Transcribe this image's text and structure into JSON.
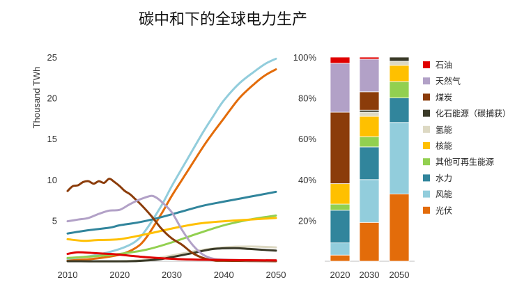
{
  "title": "碳中和下的全球电力生产",
  "chart_data": [
    {
      "type": "line",
      "ylabel": "Thousand TWh",
      "xlim": [
        2010,
        2050
      ],
      "ylim": [
        0,
        25
      ],
      "x_ticks": [
        "2010",
        "2020",
        "2030",
        "2040",
        "2050"
      ],
      "y_ticks": [
        "5",
        "10",
        "15",
        "20",
        "25"
      ],
      "series": [
        {
          "name": "光伏",
          "color": "#e36c0a",
          "points": [
            [
              2010,
              0.1
            ],
            [
              2015,
              0.3
            ],
            [
              2020,
              0.8
            ],
            [
              2023,
              1.6
            ],
            [
              2025,
              2.8
            ],
            [
              2028,
              5.8
            ],
            [
              2030,
              8.0
            ],
            [
              2033,
              11.0
            ],
            [
              2036,
              14.0
            ],
            [
              2038,
              15.8
            ],
            [
              2040,
              17.5
            ],
            [
              2043,
              20.0
            ],
            [
              2046,
              21.8
            ],
            [
              2048,
              22.8
            ],
            [
              2050,
              23.5
            ]
          ]
        },
        {
          "name": "风能",
          "color": "#92cddc",
          "points": [
            [
              2010,
              0.3
            ],
            [
              2015,
              0.7
            ],
            [
              2020,
              1.5
            ],
            [
              2023,
              2.4
            ],
            [
              2025,
              3.8
            ],
            [
              2028,
              6.8
            ],
            [
              2030,
              9.2
            ],
            [
              2033,
              12.5
            ],
            [
              2036,
              15.8
            ],
            [
              2038,
              17.8
            ],
            [
              2040,
              19.7
            ],
            [
              2043,
              21.8
            ],
            [
              2046,
              23.3
            ],
            [
              2048,
              24.2
            ],
            [
              2050,
              24.8
            ]
          ]
        },
        {
          "name": "水力",
          "color": "#31859c",
          "points": [
            [
              2010,
              3.4
            ],
            [
              2014,
              3.8
            ],
            [
              2018,
              4.1
            ],
            [
              2020,
              4.4
            ],
            [
              2024,
              4.8
            ],
            [
              2028,
              5.4
            ],
            [
              2032,
              6.1
            ],
            [
              2036,
              6.8
            ],
            [
              2040,
              7.3
            ],
            [
              2045,
              7.9
            ],
            [
              2050,
              8.5
            ]
          ]
        },
        {
          "name": "其他可再生能源",
          "color": "#92d050",
          "points": [
            [
              2010,
              0.4
            ],
            [
              2015,
              0.6
            ],
            [
              2020,
              0.9
            ],
            [
              2025,
              1.4
            ],
            [
              2030,
              2.3
            ],
            [
              2035,
              3.4
            ],
            [
              2040,
              4.4
            ],
            [
              2045,
              5.1
            ],
            [
              2050,
              5.6
            ]
          ]
        },
        {
          "name": "核能",
          "color": "#ffc000",
          "points": [
            [
              2010,
              2.7
            ],
            [
              2013,
              2.5
            ],
            [
              2016,
              2.6
            ],
            [
              2020,
              2.7
            ],
            [
              2025,
              3.3
            ],
            [
              2030,
              4.0
            ],
            [
              2035,
              4.6
            ],
            [
              2040,
              4.9
            ],
            [
              2045,
              5.1
            ],
            [
              2050,
              5.3
            ]
          ]
        },
        {
          "name": "氢能",
          "color": "#ddd9c3",
          "points": [
            [
              2010,
              0
            ],
            [
              2020,
              0
            ],
            [
              2025,
              0.2
            ],
            [
              2030,
              0.7
            ],
            [
              2035,
              1.3
            ],
            [
              2040,
              1.7
            ],
            [
              2045,
              1.8
            ],
            [
              2050,
              1.7
            ]
          ]
        },
        {
          "name": "化石能源（碳捕获）",
          "color": "#3a3a28",
          "points": [
            [
              2010,
              0
            ],
            [
              2022,
              0
            ],
            [
              2027,
              0.2
            ],
            [
              2030,
              0.5
            ],
            [
              2034,
              1.0
            ],
            [
              2038,
              1.5
            ],
            [
              2042,
              1.6
            ],
            [
              2045,
              1.5
            ],
            [
              2050,
              1.3
            ]
          ]
        },
        {
          "name": "煤炭",
          "color": "#8b3c0a",
          "points": [
            [
              2010,
              8.6
            ],
            [
              2011,
              9.2
            ],
            [
              2012,
              9.3
            ],
            [
              2013,
              9.7
            ],
            [
              2014,
              9.8
            ],
            [
              2015,
              9.5
            ],
            [
              2016,
              9.8
            ],
            [
              2017,
              9.6
            ],
            [
              2018,
              10.1
            ],
            [
              2019,
              9.7
            ],
            [
              2020,
              9.2
            ],
            [
              2021,
              8.6
            ],
            [
              2022,
              8.2
            ],
            [
              2023,
              7.6
            ],
            [
              2024,
              7.0
            ],
            [
              2026,
              5.6
            ],
            [
              2028,
              4.0
            ],
            [
              2030,
              2.8
            ],
            [
              2032,
              2.0
            ],
            [
              2034,
              1.0
            ],
            [
              2036,
              0.4
            ],
            [
              2038,
              0.1
            ],
            [
              2040,
              0.05
            ],
            [
              2050,
              0
            ]
          ]
        },
        {
          "name": "天然气",
          "color": "#b2a1c7",
          "points": [
            [
              2010,
              4.9
            ],
            [
              2012,
              5.1
            ],
            [
              2014,
              5.3
            ],
            [
              2016,
              5.8
            ],
            [
              2018,
              6.2
            ],
            [
              2020,
              6.3
            ],
            [
              2022,
              7.0
            ],
            [
              2024,
              7.6
            ],
            [
              2026,
              8.0
            ],
            [
              2027,
              7.8
            ],
            [
              2028,
              7.3
            ],
            [
              2030,
              6.0
            ],
            [
              2032,
              3.8
            ],
            [
              2034,
              2.0
            ],
            [
              2036,
              0.8
            ],
            [
              2038,
              0.3
            ],
            [
              2040,
              0.2
            ],
            [
              2045,
              0.1
            ],
            [
              2050,
              0.1
            ]
          ]
        },
        {
          "name": "石油",
          "color": "#e00000",
          "points": [
            [
              2010,
              0.9
            ],
            [
              2012,
              1.1
            ],
            [
              2015,
              1.0
            ],
            [
              2018,
              0.9
            ],
            [
              2020,
              0.8
            ],
            [
              2025,
              0.5
            ],
            [
              2030,
              0.3
            ],
            [
              2035,
              0.2
            ],
            [
              2040,
              0.15
            ],
            [
              2050,
              0.1
            ]
          ]
        }
      ]
    },
    {
      "type": "bar",
      "stacked": true,
      "categories": [
        "2020",
        "2030",
        "2050"
      ],
      "y_ticks": [
        "20%",
        "40%",
        "60%",
        "80%",
        "100%"
      ],
      "ylim": [
        0,
        100
      ],
      "legend": "right",
      "series": [
        {
          "name": "光伏",
          "color": "#e36c0a",
          "values": [
            3,
            19,
            33
          ]
        },
        {
          "name": "风能",
          "color": "#92cddc",
          "values": [
            6,
            21,
            35
          ]
        },
        {
          "name": "水力",
          "color": "#31859c",
          "values": [
            16,
            16,
            12
          ]
        },
        {
          "name": "其他可再生能源",
          "color": "#92d050",
          "values": [
            3,
            5,
            8
          ]
        },
        {
          "name": "核能",
          "color": "#ffc000",
          "values": [
            10,
            10,
            8
          ]
        },
        {
          "name": "氢能",
          "color": "#ddd9c3",
          "values": [
            0,
            2,
            2
          ]
        },
        {
          "name": "化石能源（碳捕获）",
          "color": "#3a3a28",
          "values": [
            0,
            1,
            2
          ]
        },
        {
          "name": "煤炭",
          "color": "#8b3c0a",
          "values": [
            35,
            9,
            0
          ]
        },
        {
          "name": "天然气",
          "color": "#b2a1c7",
          "values": [
            24,
            16,
            0
          ]
        },
        {
          "name": "石油",
          "color": "#e00000",
          "values": [
            3,
            1,
            0
          ]
        }
      ]
    }
  ],
  "legend": [
    {
      "label": "石油",
      "color": "#e00000"
    },
    {
      "label": "天然气",
      "color": "#b2a1c7"
    },
    {
      "label": "煤炭",
      "color": "#8b3c0a"
    },
    {
      "label": "化石能源（碳捕获）",
      "color": "#3a3a28"
    },
    {
      "label": "氢能",
      "color": "#ddd9c3"
    },
    {
      "label": "核能",
      "color": "#ffc000"
    },
    {
      "label": "其他可再生能源",
      "color": "#92d050"
    },
    {
      "label": "水力",
      "color": "#31859c"
    },
    {
      "label": "风能",
      "color": "#92cddc"
    },
    {
      "label": "光伏",
      "color": "#e36c0a"
    }
  ]
}
